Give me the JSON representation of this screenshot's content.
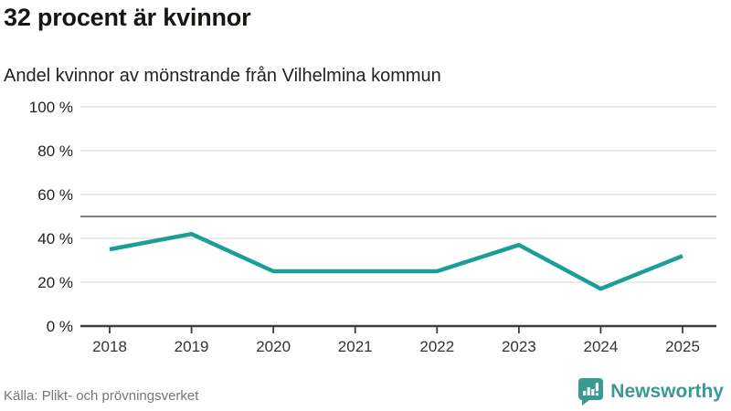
{
  "title": "32 procent är kvinnor",
  "subtitle": "Andel kvinnor av mönstrande från Vilhelmina kommun",
  "source": "Källa: Plikt- och prövningsverket",
  "brand": {
    "name": "Newsworthy",
    "color": "#3A9993",
    "icon": "newsworthy-chart-bubble"
  },
  "colors": {
    "line": "#1A9E97",
    "grid": "#E3E3E3",
    "reference_line": "#808080",
    "axis": "#3C3C3C",
    "tick_text": "#222222"
  },
  "chart_data": {
    "type": "line",
    "x": [
      "2018",
      "2019",
      "2020",
      "2021",
      "2022",
      "2023",
      "2024",
      "2025"
    ],
    "series": [
      {
        "name": "Andel kvinnor av mönstrande",
        "values": [
          35,
          42,
          25,
          25,
          25,
          37,
          17,
          32
        ]
      }
    ],
    "title": "32 procent är kvinnor",
    "subtitle": "Andel kvinnor av mönstrande från Vilhelmina kommun",
    "xlabel": "",
    "ylabel": "",
    "ylim": [
      0,
      100
    ],
    "yticks": [
      0,
      20,
      40,
      60,
      80,
      100
    ],
    "ytick_suffix": " %",
    "reference_line": 50,
    "grid": true,
    "legend": "none"
  }
}
